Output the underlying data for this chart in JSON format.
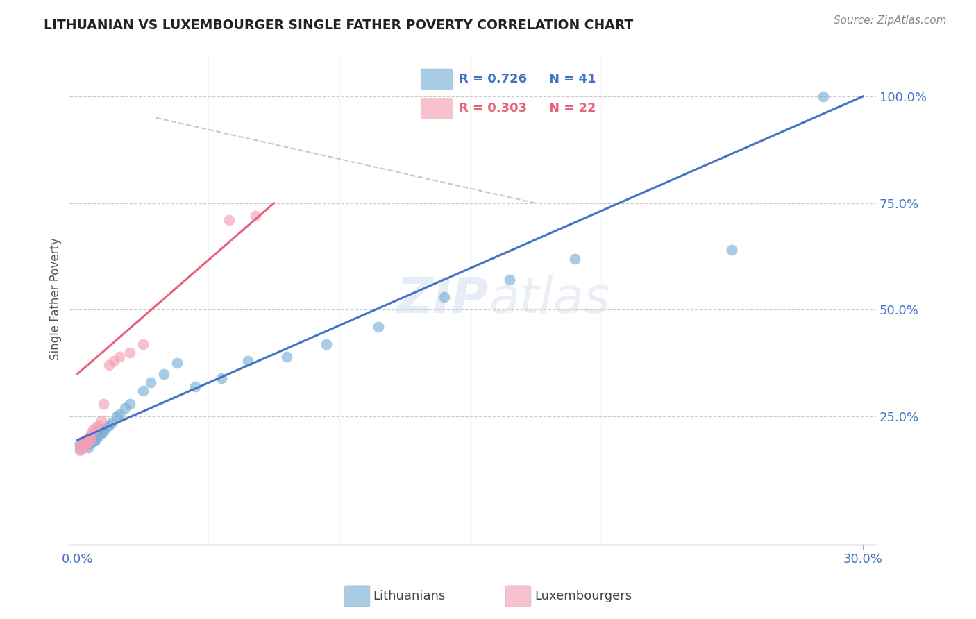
{
  "title": "LITHUANIAN VS LUXEMBOURGER SINGLE FATHER POVERTY CORRELATION CHART",
  "source": "Source: ZipAtlas.com",
  "ylabel": "Single Father Poverty",
  "xlim": [
    -0.003,
    0.305
  ],
  "ylim": [
    -0.05,
    1.1
  ],
  "yticks": [
    0.0,
    0.25,
    0.5,
    0.75,
    1.0
  ],
  "ytick_labels": [
    "",
    "25.0%",
    "50.0%",
    "75.0%",
    "100.0%"
  ],
  "xtick_labels": [
    "0.0%",
    "30.0%"
  ],
  "xtick_positions": [
    0.0,
    0.3
  ],
  "legend_R_blue": "R = 0.726",
  "legend_N_blue": "N = 41",
  "legend_R_pink": "R = 0.303",
  "legend_N_pink": "N = 22",
  "blue_color": "#7BAFD4",
  "pink_color": "#F4A0B5",
  "blue_line_color": "#4472C4",
  "pink_line_color": "#E8607A",
  "grid_color": "#C8C8C8",
  "blue_x": [
    0.001,
    0.001,
    0.002,
    0.002,
    0.003,
    0.003,
    0.004,
    0.004,
    0.005,
    0.005,
    0.006,
    0.006,
    0.007,
    0.007,
    0.008,
    0.008,
    0.009,
    0.01,
    0.01,
    0.011,
    0.012,
    0.013,
    0.015,
    0.016,
    0.018,
    0.02,
    0.025,
    0.028,
    0.033,
    0.038,
    0.045,
    0.055,
    0.065,
    0.08,
    0.095,
    0.115,
    0.14,
    0.165,
    0.19,
    0.25,
    0.285
  ],
  "blue_y": [
    0.175,
    0.185,
    0.18,
    0.19,
    0.182,
    0.188,
    0.178,
    0.185,
    0.188,
    0.195,
    0.192,
    0.2,
    0.195,
    0.2,
    0.205,
    0.215,
    0.21,
    0.215,
    0.22,
    0.225,
    0.23,
    0.235,
    0.25,
    0.255,
    0.27,
    0.28,
    0.31,
    0.33,
    0.35,
    0.375,
    0.32,
    0.34,
    0.38,
    0.39,
    0.42,
    0.46,
    0.53,
    0.57,
    0.62,
    0.64,
    1.0
  ],
  "pink_x": [
    0.001,
    0.001,
    0.002,
    0.002,
    0.003,
    0.003,
    0.004,
    0.004,
    0.005,
    0.005,
    0.006,
    0.007,
    0.008,
    0.009,
    0.01,
    0.012,
    0.014,
    0.016,
    0.02,
    0.025,
    0.058,
    0.068
  ],
  "pink_y": [
    0.17,
    0.185,
    0.175,
    0.188,
    0.18,
    0.195,
    0.19,
    0.2,
    0.195,
    0.21,
    0.22,
    0.225,
    0.23,
    0.24,
    0.28,
    0.37,
    0.38,
    0.39,
    0.4,
    0.42,
    0.71,
    0.72
  ],
  "blue_line_x0": 0.0,
  "blue_line_x1": 0.3,
  "blue_line_y0": 0.195,
  "blue_line_y1": 1.0,
  "pink_line_x0": 0.0,
  "pink_line_x1": 0.075,
  "pink_line_y0": 0.35,
  "pink_line_y1": 0.75,
  "gray_line_x0": 0.03,
  "gray_line_x1": 0.175,
  "gray_line_y0": 0.95,
  "gray_line_y1": 0.75
}
